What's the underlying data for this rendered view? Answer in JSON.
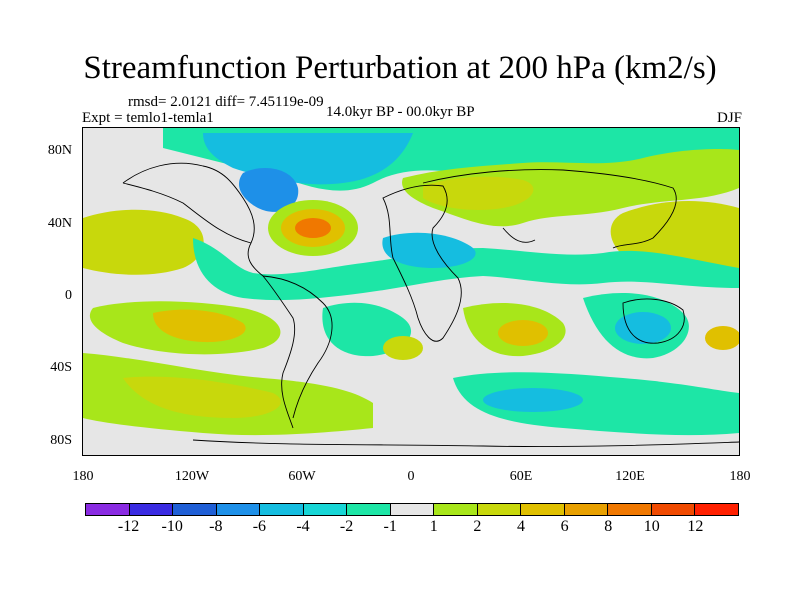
{
  "title": "Streamfunction Perturbation at 200 hPa (km2/s)",
  "stats": "rmsd= 2.0121 diff= 7.45119e-09",
  "experiment": "Expt = temlo1-temla1",
  "period": "14.0kyr BP - 00.0kyr BP",
  "season": "DJF",
  "y_ticks": [
    "80N",
    "40N",
    "0",
    "40S",
    "80S"
  ],
  "x_ticks": [
    "180",
    "120W",
    "60W",
    "0",
    "60E",
    "120E",
    "180"
  ],
  "colorbar": {
    "colors": [
      "#8a2be2",
      "#3a2be2",
      "#1f5fd6",
      "#1e90e8",
      "#15bde0",
      "#18d6d6",
      "#1de6a6",
      "#e6e6e6",
      "#a8e61a",
      "#c8d80c",
      "#e0c000",
      "#e8a000",
      "#f07800",
      "#f04a00",
      "#ff2000"
    ],
    "labels": [
      "-12",
      "-10",
      "-8",
      "-6",
      "-4",
      "-2",
      "-1",
      "1",
      "2",
      "4",
      "6",
      "8",
      "10",
      "12"
    ]
  },
  "legend_colors": {
    "neg_strong": "#1f5fd6",
    "neg_mid": "#15bde0",
    "neg_weak": "#1de6a6",
    "neutral": "#e6e6e6",
    "pos_weak": "#a8e61a",
    "pos_mid": "#c8d80c",
    "pos_strong": "#e8a000",
    "pos_max": "#f07800"
  }
}
